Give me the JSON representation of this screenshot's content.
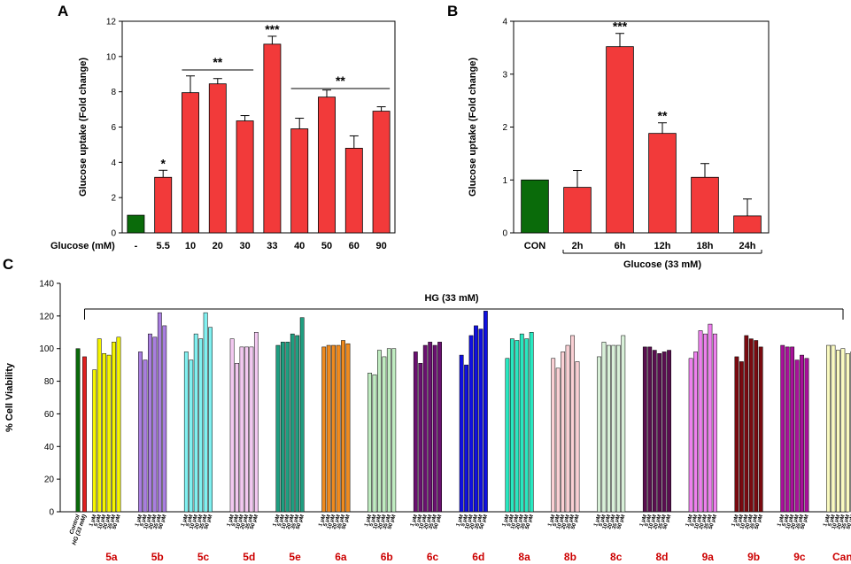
{
  "panel_labels": {
    "a": "A",
    "b": "B",
    "c": "C"
  },
  "chart_data": [
    {
      "type": "bar",
      "panel": "A",
      "ylabel": "Glucose uptake (Fold change)",
      "xlabel": "Glucose (mM)",
      "ylim": [
        0,
        12
      ],
      "yticks": [
        0,
        2,
        4,
        6,
        8,
        10,
        12
      ],
      "categories": [
        "-",
        "5.5",
        "10",
        "20",
        "30",
        "33",
        "40",
        "50",
        "60",
        "90"
      ],
      "values": [
        1.0,
        3.15,
        7.95,
        8.45,
        6.35,
        10.7,
        5.9,
        7.7,
        4.8,
        6.9
      ],
      "errors": [
        0,
        0.4,
        0.95,
        0.3,
        0.3,
        0.45,
        0.6,
        0.4,
        0.7,
        0.25
      ],
      "colors": [
        "#0a6b0a",
        "#f23a3a",
        "#f23a3a",
        "#f23a3a",
        "#f23a3a",
        "#f23a3a",
        "#f23a3a",
        "#f23a3a",
        "#f23a3a",
        "#f23a3a"
      ],
      "significance": [
        "",
        "*",
        "",
        "",
        "",
        "***",
        "",
        "",
        "",
        ""
      ],
      "brackets": [
        {
          "from": 2,
          "to": 4,
          "label": "**"
        },
        {
          "from": 6,
          "to": 9,
          "label": "**"
        }
      ]
    },
    {
      "type": "bar",
      "panel": "B",
      "ylabel": "Glucose uptake (Fold change)",
      "xlabel": "Glucose (33 mM)",
      "ylim": [
        0,
        4
      ],
      "yticks": [
        0,
        1,
        2,
        3,
        4
      ],
      "categories": [
        "CON",
        "2h",
        "6h",
        "12h",
        "18h",
        "24h"
      ],
      "values": [
        1.0,
        0.86,
        3.52,
        1.88,
        1.05,
        0.32
      ],
      "errors": [
        0,
        0.32,
        0.25,
        0.2,
        0.26,
        0.32
      ],
      "colors": [
        "#0a6b0a",
        "#f23a3a",
        "#f23a3a",
        "#f23a3a",
        "#f23a3a",
        "#f23a3a"
      ],
      "significance": [
        "",
        "",
        "***",
        "**",
        "",
        ""
      ]
    },
    {
      "type": "bar",
      "panel": "C",
      "ylabel": "% Cell Viability",
      "ylim": [
        0,
        140
      ],
      "yticks": [
        0,
        20,
        40,
        60,
        80,
        100,
        120,
        140
      ],
      "bracket_label": "HG (33 mM)",
      "controls": [
        {
          "label": "Control",
          "value": 100,
          "color": "#0a6b0a"
        },
        {
          "label": "HG (33 mM)",
          "value": 95,
          "color": "#e02020"
        }
      ],
      "dose_labels": [
        "1 μM",
        "5 μM",
        "10 μM",
        "20 μM",
        "35 μM",
        "50 μM"
      ],
      "groups": [
        {
          "name": "5a",
          "color": "#f5f500",
          "values": [
            87,
            106,
            97,
            96,
            104,
            107
          ]
        },
        {
          "name": "5b",
          "color": "#a97ee0",
          "values": [
            98,
            93,
            109,
            107,
            122,
            114
          ]
        },
        {
          "name": "5c",
          "color": "#80f0f0",
          "values": [
            98,
            93,
            109,
            106,
            122,
            113
          ]
        },
        {
          "name": "5d",
          "color": "#f2c8f0",
          "values": [
            106,
            91,
            101,
            101,
            101,
            110
          ]
        },
        {
          "name": "5e",
          "color": "#1f9e80",
          "values": [
            102,
            104,
            104,
            109,
            108,
            119
          ]
        },
        {
          "name": "6a",
          "color": "#ef8a1e",
          "values": [
            101,
            102,
            102,
            102,
            105,
            103
          ]
        },
        {
          "name": "6b",
          "color": "#bfecc0",
          "values": [
            85,
            84,
            99,
            95,
            100,
            100
          ]
        },
        {
          "name": "6c",
          "color": "#6a1070",
          "values": [
            98,
            91,
            102,
            104,
            102,
            104
          ]
        },
        {
          "name": "6d",
          "color": "#1010e0",
          "values": [
            96,
            90,
            108,
            114,
            112,
            123
          ]
        },
        {
          "name": "8a",
          "color": "#28e8c0",
          "values": [
            94,
            106,
            105,
            109,
            106,
            110
          ]
        },
        {
          "name": "8b",
          "color": "#fad0d4",
          "values": [
            94,
            88,
            98,
            102,
            108,
            92
          ]
        },
        {
          "name": "8c",
          "color": "#d8f0d8",
          "values": [
            95,
            104,
            102,
            102,
            102,
            108
          ]
        },
        {
          "name": "8d",
          "color": "#5a0f50",
          "values": [
            101,
            101,
            99,
            97,
            98,
            99
          ]
        },
        {
          "name": "9a",
          "color": "#ee80ee",
          "values": [
            94,
            98,
            111,
            109,
            115,
            109
          ]
        },
        {
          "name": "9b",
          "color": "#7a0a10",
          "values": [
            95,
            92,
            108,
            106,
            105,
            101
          ]
        },
        {
          "name": "9c",
          "color": "#a8109a",
          "values": [
            102,
            101,
            101,
            93,
            96,
            94
          ]
        },
        {
          "name": "Cana",
          "color": "#fafac0",
          "values": [
            102,
            102,
            99,
            100,
            97,
            98
          ]
        }
      ]
    }
  ]
}
